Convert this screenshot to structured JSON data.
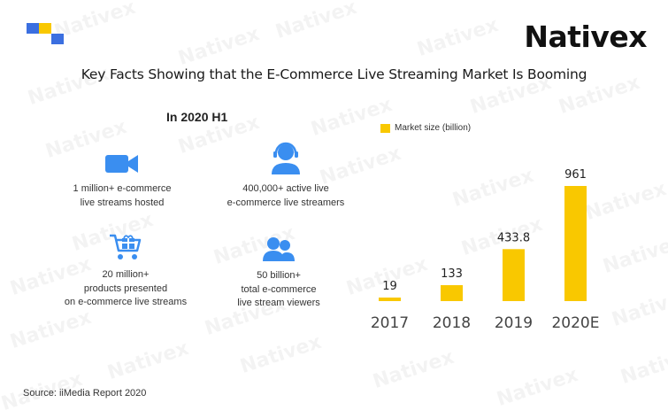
{
  "brand": "Nativex",
  "title": "Key Facts Showing that the E-Commerce Live Streaming Market Is Booming",
  "subtitle": "In 2020 H1",
  "facts": [
    {
      "icon": "video-camera-icon",
      "line1": "1 million+ e-commerce",
      "line2": "live streams hosted",
      "line3": ""
    },
    {
      "icon": "streamer-headset-icon",
      "line1": "400,000+ active live",
      "line2": "e-commerce live streamers",
      "line3": ""
    },
    {
      "icon": "shopping-cart-gift-icon",
      "line1": "20 million+",
      "line2": "products presented",
      "line3": "on e-commerce live streams"
    },
    {
      "icon": "viewers-group-icon",
      "line1": "50 billion+",
      "line2": "total e-commerce",
      "line3": "live stream viewers"
    }
  ],
  "colors": {
    "bar": "#f9c800",
    "icon_blue": "#3a8ef0",
    "logo_blue": "#3b6fe0",
    "logo_yellow": "#f9c800",
    "year_label": "#444444"
  },
  "source": "Source: iiMedia Report 2020",
  "chart_data": {
    "type": "bar",
    "categories": [
      "2017",
      "2018",
      "2019",
      "2020E"
    ],
    "values": [
      19,
      133,
      433.8,
      961
    ],
    "value_labels": [
      "19",
      "133",
      "433.8",
      "961"
    ],
    "legend": "Market size (billion)",
    "legend_position": "top-left",
    "ylim": [
      0,
      961
    ],
    "grid": false,
    "xlabel": "",
    "ylabel": ""
  }
}
